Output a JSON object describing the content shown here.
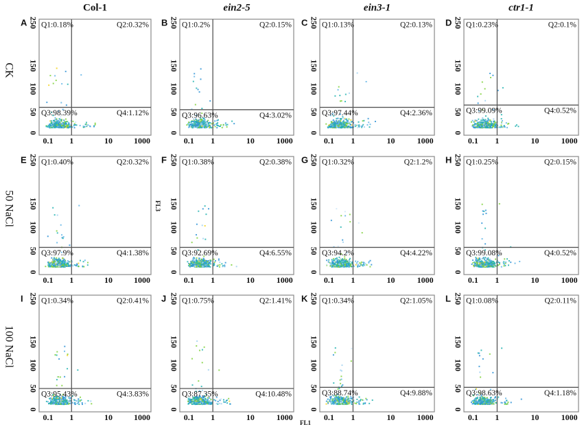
{
  "columns": [
    "Col-1",
    "ein2-5",
    "ein3-1",
    "ctr1-1"
  ],
  "rows": [
    "CK",
    "50 NaCl",
    "100 NaCl"
  ],
  "y_axis_label": "FL3",
  "x_axis_label": "FL1",
  "xticks": [
    "0.1",
    "1",
    "10",
    "1000"
  ],
  "yticks": [
    "0",
    "50",
    "100",
    "150",
    "250"
  ],
  "panels": [
    {
      "letter": "A",
      "q1": "Q1:0.18%",
      "q2": "Q2:0.32%",
      "q3": "Q3:98.39%",
      "q4": "Q4:1.12%"
    },
    {
      "letter": "B",
      "q1": "Q1:0.2%",
      "q2": "Q2:0.15%",
      "q3": "Q3:96.63%",
      "q4": "Q4:3.02%"
    },
    {
      "letter": "C",
      "q1": "Q1:0.13%",
      "q2": "Q2:0.13%",
      "q3": "Q3:97.44%",
      "q4": "Q4:2.36%"
    },
    {
      "letter": "D",
      "q1": "Q1:0.23%",
      "q2": "Q2:0.1%",
      "q3": "Q3:99.09%",
      "q4": "Q4:0.52%"
    },
    {
      "letter": "E",
      "q1": "Q1:0.40%",
      "q2": "Q2:0.32%",
      "q3": "Q3:97.9%",
      "q4": "Q4:1.38%"
    },
    {
      "letter": "F",
      "q1": "Q1:0.38%",
      "q2": "Q2:0.38%",
      "q3": "Q3:92.69%",
      "q4": "Q4:6.55%"
    },
    {
      "letter": "G",
      "q1": "Q1:0.32%",
      "q2": "Q2:1.2%",
      "q3": "Q3:94.2%",
      "q4": "Q4:4.22%"
    },
    {
      "letter": "H",
      "q1": "Q1:0.25%",
      "q2": "Q2:0.15%",
      "q3": "Q3:99.08%",
      "q4": "Q4:0.52%"
    },
    {
      "letter": "I",
      "q1": "Q1:0.34%",
      "q2": "Q2:0.41%",
      "q3": "Q3:95.43%",
      "q4": "Q4:3.83%"
    },
    {
      "letter": "J",
      "q1": "Q1:0.75%",
      "q2": "Q2:1.41%",
      "q3": "Q3:87.35%",
      "q4": "Q4:10.48%"
    },
    {
      "letter": "K",
      "q1": "Q1:0.34%",
      "q2": "Q2:1.05%",
      "q3": "Q3:88.74%",
      "q4": "Q4:9.88%"
    },
    {
      "letter": "L",
      "q1": "Q1:0.08%",
      "q2": "Q2:0.11%",
      "q3": "Q3:98.63%",
      "q4": "Q4:1.18%"
    }
  ]
}
